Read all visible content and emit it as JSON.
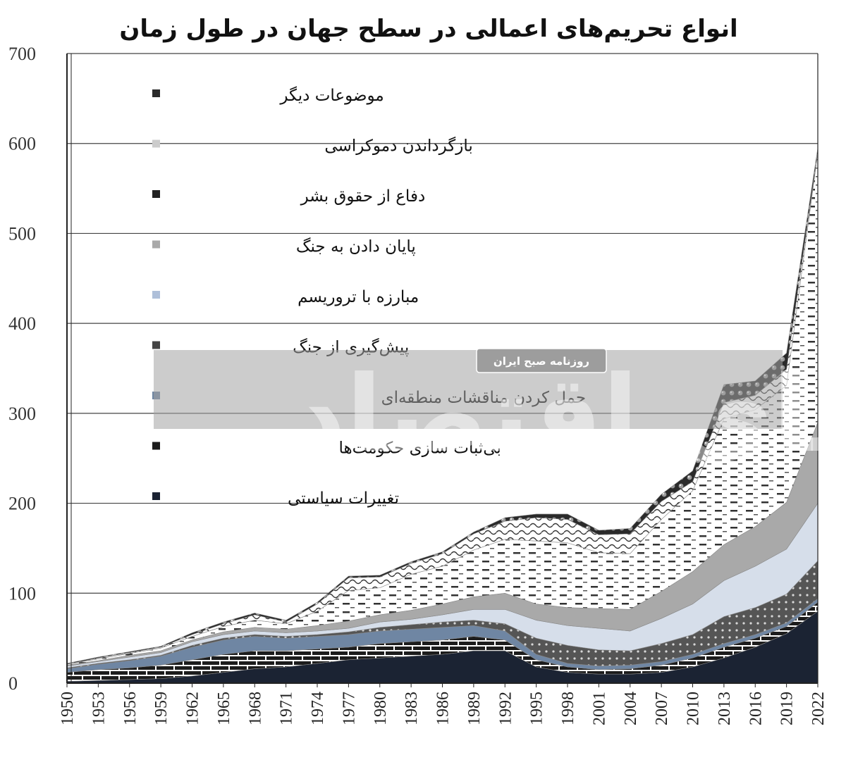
{
  "chart_data": {
    "type": "area",
    "stacked": true,
    "title": "انواع تحریم‌های اعمالی در سطح جهان در طول زمان",
    "xlabel": "",
    "ylabel": "",
    "xlim": [
      1950,
      2022
    ],
    "ylim": [
      0,
      700
    ],
    "yticks": [
      "0",
      "100",
      "200",
      "300",
      "400",
      "500",
      "600",
      "700"
    ],
    "xticks": [
      "1950",
      "1953",
      "1956",
      "1959",
      "1962",
      "1965",
      "1968",
      "1971",
      "1974",
      "1977",
      "1980",
      "1983",
      "1986",
      "1989",
      "1992",
      "1995",
      "1998",
      "2001",
      "2004",
      "2007",
      "2010",
      "2013",
      "2016",
      "2019",
      "2022"
    ],
    "grid": true,
    "legend_position": "top-left",
    "x": [
      1950,
      1953,
      1956,
      1959,
      1962,
      1965,
      1968,
      1971,
      1974,
      1977,
      1980,
      1983,
      1986,
      1989,
      1992,
      1995,
      1998,
      2001,
      2004,
      2007,
      2010,
      2013,
      2016,
      2019,
      2022
    ],
    "series": [
      {
        "name": "تغییرات سیاستی",
        "color": "#1b2333",
        "values": [
          2,
          3,
          4,
          5,
          8,
          12,
          16,
          18,
          22,
          26,
          28,
          30,
          32,
          36,
          36,
          18,
          12,
          10,
          10,
          12,
          18,
          28,
          40,
          55,
          80
        ]
      },
      {
        "name": "بی‌ثبات سازی حکومت‌ها",
        "color": "#1c1c1c",
        "values": [
          10,
          12,
          13,
          15,
          18,
          20,
          20,
          18,
          16,
          14,
          16,
          16,
          16,
          16,
          12,
          8,
          6,
          5,
          6,
          8,
          10,
          12,
          10,
          8,
          10
        ]
      },
      {
        "name": "حمل کردن مناقشات منطقه‌ای",
        "color": "#6f86a3",
        "values": [
          4,
          6,
          8,
          10,
          14,
          16,
          16,
          14,
          14,
          14,
          14,
          14,
          14,
          12,
          10,
          6,
          4,
          4,
          4,
          4,
          4,
          4,
          4,
          4,
          4
        ]
      },
      {
        "name": "پیش‌گیری از جنگ",
        "color": "#5a5a5a",
        "values": [
          1,
          1,
          1,
          1,
          2,
          2,
          2,
          2,
          2,
          3,
          4,
          5,
          6,
          6,
          8,
          18,
          20,
          18,
          16,
          20,
          22,
          30,
          30,
          32,
          42
        ]
      },
      {
        "name": "مبارزه با تروریسم",
        "color": "#c8d3e4",
        "values": [
          2,
          2,
          3,
          3,
          4,
          4,
          4,
          4,
          4,
          4,
          6,
          6,
          8,
          12,
          16,
          20,
          22,
          24,
          22,
          28,
          34,
          40,
          46,
          50,
          64
        ]
      },
      {
        "name": "پایان دادن به جنگ",
        "color": "#a9a9a9",
        "values": [
          1,
          1,
          2,
          2,
          2,
          3,
          4,
          4,
          6,
          8,
          8,
          10,
          12,
          14,
          18,
          18,
          20,
          22,
          24,
          30,
          36,
          40,
          44,
          52,
          90
        ]
      },
      {
        "name": "دفاع از حقوق بشر",
        "color": "#f1f1f1",
        "values": [
          1,
          2,
          2,
          3,
          4,
          6,
          8,
          6,
          16,
          34,
          30,
          40,
          42,
          52,
          60,
          70,
          72,
          62,
          62,
          80,
          90,
          140,
          130,
          130,
          300
        ]
      },
      {
        "name": "بازگرداندن دموکراسی",
        "color": "#ffffff",
        "values": [
          0,
          1,
          1,
          1,
          2,
          3,
          6,
          2,
          8,
          14,
          12,
          12,
          14,
          18,
          20,
          26,
          26,
          20,
          22,
          20,
          10,
          18,
          16,
          18,
          0
        ]
      },
      {
        "name": "موضوعات دیگر",
        "color": "#2b2b2b",
        "values": [
          1,
          1,
          1,
          1,
          2,
          2,
          2,
          2,
          2,
          2,
          2,
          2,
          2,
          2,
          4,
          4,
          6,
          5,
          6,
          8,
          12,
          20,
          16,
          18,
          5
        ]
      }
    ]
  },
  "watermark": {
    "logo_text": "دنیای اقتصاد",
    "caption": "روزنامه صبح ایران"
  }
}
